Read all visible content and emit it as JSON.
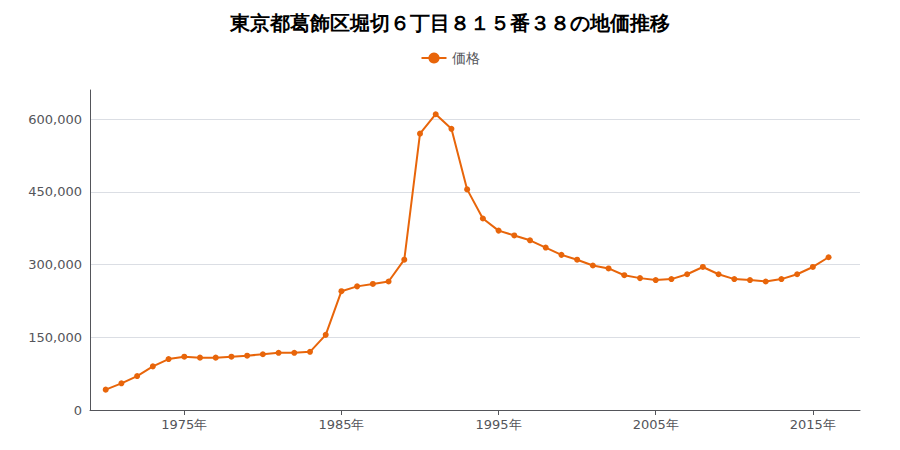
{
  "chart_data": {
    "type": "line",
    "title": "東京都葛飾区堀切６丁目８１５番３８の地価推移",
    "series": [
      {
        "name": "価格",
        "color": "#E8650A",
        "marker": "circle",
        "values": [
          42000,
          55000,
          70000,
          90000,
          105000,
          110000,
          108000,
          108000,
          110000,
          112000,
          115000,
          118000,
          118000,
          120000,
          155000,
          245000,
          255000,
          260000,
          265000,
          310000,
          570000,
          610000,
          580000,
          455000,
          395000,
          370000,
          360000,
          350000,
          335000,
          320000,
          310000,
          298000,
          292000,
          278000,
          272000,
          268000,
          270000,
          280000,
          295000,
          280000,
          270000,
          268000,
          265000,
          270000,
          280000,
          295000,
          315000
        ]
      }
    ],
    "x": [
      1970,
      1971,
      1972,
      1973,
      1974,
      1975,
      1976,
      1977,
      1978,
      1979,
      1980,
      1981,
      1982,
      1983,
      1984,
      1985,
      1986,
      1987,
      1988,
      1989,
      1990,
      1991,
      1992,
      1993,
      1994,
      1995,
      1996,
      1997,
      1998,
      1999,
      2000,
      2001,
      2002,
      2003,
      2004,
      2005,
      2006,
      2007,
      2008,
      2009,
      2010,
      2011,
      2012,
      2013,
      2014,
      2015,
      2016
    ],
    "xlim": [
      1969,
      2018
    ],
    "xticks": [
      {
        "value": 1975,
        "label": "1975年"
      },
      {
        "value": 1985,
        "label": "1985年"
      },
      {
        "value": 1995,
        "label": "1995年"
      },
      {
        "value": 2005,
        "label": "2005年"
      },
      {
        "value": 2015,
        "label": "2015年"
      }
    ],
    "ylim": [
      0,
      660000
    ],
    "yticks": [
      0,
      {
        "value": 150000,
        "label": "150,000"
      },
      {
        "value": 300000,
        "label": "300,000"
      },
      {
        "value": 450000,
        "label": "450,000"
      },
      {
        "value": 600000,
        "label": "600,000"
      }
    ],
    "grid": "y",
    "legend": "top"
  }
}
